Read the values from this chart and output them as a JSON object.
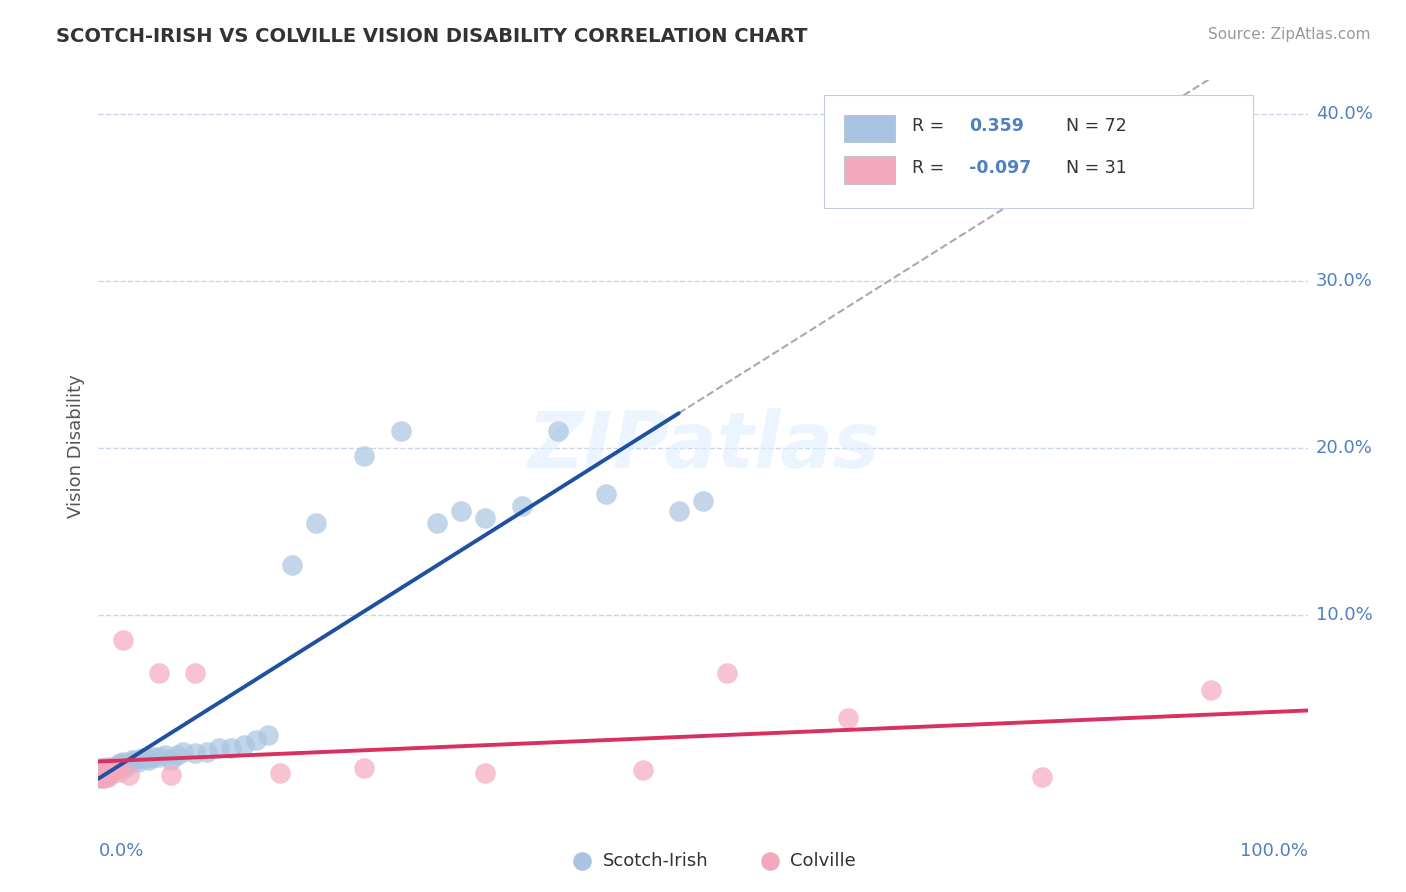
{
  "title": "SCOTCH-IRISH VS COLVILLE VISION DISABILITY CORRELATION CHART",
  "source": "Source: ZipAtlas.com",
  "ylabel": "Vision Disability",
  "scotch_irish_R": 0.359,
  "scotch_irish_N": 72,
  "colville_R": -0.097,
  "colville_N": 31,
  "scotch_irish_color": "#a8c4e0",
  "colville_color": "#f4a8be",
  "scotch_irish_line_color": "#2050a0",
  "colville_line_color": "#d83060",
  "dash_color": "#aaaaaa",
  "grid_color": "#c8d8ea",
  "bg_color": "#ffffff",
  "tick_color": "#5080c0",
  "xlim": [
    0.0,
    1.0
  ],
  "ylim": [
    -0.018,
    0.42
  ],
  "yticks": [
    0.1,
    0.2,
    0.3,
    0.4
  ],
  "ytick_labels": [
    "10.0%",
    "20.0%",
    "30.0%",
    "40.0%"
  ],
  "si_x": [
    0.001,
    0.001,
    0.001,
    0.001,
    0.002,
    0.002,
    0.002,
    0.002,
    0.002,
    0.003,
    0.003,
    0.003,
    0.003,
    0.003,
    0.003,
    0.004,
    0.004,
    0.004,
    0.004,
    0.005,
    0.005,
    0.005,
    0.006,
    0.006,
    0.006,
    0.007,
    0.007,
    0.008,
    0.008,
    0.009,
    0.009,
    0.01,
    0.011,
    0.012,
    0.013,
    0.015,
    0.016,
    0.018,
    0.02,
    0.022,
    0.025,
    0.028,
    0.03,
    0.033,
    0.036,
    0.04,
    0.042,
    0.045,
    0.05,
    0.055,
    0.06,
    0.065,
    0.07,
    0.08,
    0.09,
    0.1,
    0.11,
    0.12,
    0.13,
    0.14,
    0.16,
    0.18,
    0.22,
    0.25,
    0.28,
    0.3,
    0.32,
    0.35,
    0.38,
    0.42,
    0.48,
    0.5
  ],
  "si_y": [
    0.003,
    0.005,
    0.002,
    0.006,
    0.004,
    0.007,
    0.003,
    0.005,
    0.008,
    0.002,
    0.004,
    0.006,
    0.003,
    0.007,
    0.005,
    0.004,
    0.006,
    0.003,
    0.008,
    0.005,
    0.007,
    0.003,
    0.006,
    0.004,
    0.008,
    0.005,
    0.007,
    0.006,
    0.009,
    0.004,
    0.007,
    0.008,
    0.006,
    0.009,
    0.007,
    0.008,
    0.01,
    0.011,
    0.012,
    0.009,
    0.011,
    0.013,
    0.013,
    0.012,
    0.014,
    0.014,
    0.013,
    0.015,
    0.015,
    0.016,
    0.013,
    0.016,
    0.018,
    0.017,
    0.018,
    0.02,
    0.02,
    0.022,
    0.025,
    0.028,
    0.13,
    0.155,
    0.195,
    0.21,
    0.155,
    0.162,
    0.158,
    0.165,
    0.21,
    0.172,
    0.162,
    0.168
  ],
  "cv_x": [
    0.001,
    0.002,
    0.002,
    0.003,
    0.004,
    0.004,
    0.005,
    0.005,
    0.006,
    0.007,
    0.008,
    0.008,
    0.009,
    0.01,
    0.011,
    0.013,
    0.015,
    0.017,
    0.02,
    0.025,
    0.05,
    0.06,
    0.08,
    0.15,
    0.22,
    0.32,
    0.45,
    0.52,
    0.62,
    0.78,
    0.92
  ],
  "cv_y": [
    0.003,
    0.005,
    0.003,
    0.007,
    0.004,
    0.008,
    0.005,
    0.002,
    0.006,
    0.004,
    0.007,
    0.003,
    0.005,
    0.008,
    0.006,
    0.007,
    0.009,
    0.006,
    0.085,
    0.004,
    0.065,
    0.004,
    0.065,
    0.005,
    0.008,
    0.005,
    0.007,
    0.065,
    0.038,
    0.003,
    0.055
  ]
}
